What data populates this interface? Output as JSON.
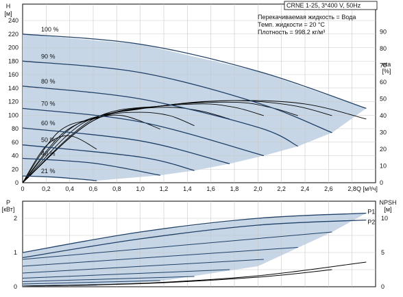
{
  "header": {
    "title": "CRNE 1-25, 3*400 V, 50Hz",
    "info_lines": [
      "Перекачиваемая жидкость = Вода",
      "Темп. жидкости = 20 °C",
      "Плотность = 998.2 кг/м³"
    ]
  },
  "colors": {
    "envelope_fill": "#c6d6e6",
    "curve": "#1f3f66",
    "efficiency_curve": "#000000",
    "grid": "#c8c8c8",
    "axis": "#000000"
  },
  "chart_data": [
    {
      "type": "line",
      "name": "head",
      "xlabel": "Q [м³/ч]",
      "ylabel_left": [
        "H",
        "[м]"
      ],
      "ylabel_right": [
        "eta",
        "[%]"
      ],
      "xlim": [
        0,
        3.0
      ],
      "ylim": [
        0,
        240
      ],
      "ylim_right": [
        0,
        100
      ],
      "x_ticks": [
        0,
        0.2,
        0.4,
        0.6,
        0.8,
        1.0,
        1.2,
        1.4,
        1.6,
        1.8,
        2.0,
        2.2,
        2.4,
        2.6,
        2.8
      ],
      "x_tick_labels": [
        "0",
        "0,2",
        "0,4",
        "0,6",
        "0,8",
        "1,0",
        "1,2",
        "1,4",
        "1,6",
        "1,8",
        "2,0",
        "2,2",
        "2,4",
        "2,6",
        "2,8"
      ],
      "y_ticks": [
        0,
        20,
        40,
        60,
        80,
        100,
        120,
        140,
        160,
        180,
        200,
        220,
        240
      ],
      "y_tick_labels": [
        "0",
        "20",
        "40",
        "60",
        "80",
        "100",
        "120",
        "140",
        "160",
        "180",
        "200",
        "220",
        "240"
      ],
      "y_ticks_right": [
        0,
        10,
        20,
        30,
        40,
        50,
        60,
        70,
        80,
        90
      ],
      "y_tick_labels_right": [
        "0",
        "10",
        "20",
        "30",
        "40",
        "50",
        "60",
        "70",
        "80",
        "90"
      ],
      "grid": true,
      "speed_labels": [
        "100 %",
        "90 %",
        "80 %",
        "70 %",
        "60 %",
        "50 %",
        "40 %",
        "21 %"
      ],
      "series": [
        {
          "name": "100 %",
          "x": [
            0,
            1.0,
            2.0,
            2.92
          ],
          "y": [
            220,
            205,
            165,
            110
          ]
        },
        {
          "name": "90 %",
          "x": [
            0,
            1.0,
            2.0,
            2.63
          ],
          "y": [
            180,
            163,
            118,
            74
          ]
        },
        {
          "name": "80 %",
          "x": [
            0,
            1.0,
            2.0,
            2.34
          ],
          "y": [
            143,
            124,
            82,
            54
          ]
        },
        {
          "name": "70 %",
          "x": [
            0,
            1.0,
            2.05
          ],
          "y": [
            110,
            90,
            40
          ]
        },
        {
          "name": "60 %",
          "x": [
            0,
            1.0,
            1.76
          ],
          "y": [
            81,
            62,
            28
          ]
        },
        {
          "name": "50 %",
          "x": [
            0,
            1.0,
            1.46
          ],
          "y": [
            56,
            38,
            18
          ]
        },
        {
          "name": "40 %",
          "x": [
            0,
            0.6,
            1.17
          ],
          "y": [
            36,
            29,
            11
          ]
        },
        {
          "name": "21 %",
          "x": [
            0,
            0.3,
            0.63
          ],
          "y": [
            10,
            8,
            3
          ]
        }
      ],
      "efficiency_series": [
        {
          "x": [
            0,
            0.6,
            1.2,
            1.8,
            2.4,
            2.92
          ],
          "y": [
            0,
            38,
            46,
            49,
            47,
            38
          ]
        },
        {
          "x": [
            0,
            0.6,
            1.2,
            1.8,
            2.3,
            2.63
          ],
          "y": [
            0,
            37,
            46,
            49,
            46,
            40
          ]
        },
        {
          "x": [
            0,
            0.6,
            1.2,
            1.8,
            2.1,
            2.34
          ],
          "y": [
            0,
            37,
            46,
            48,
            45,
            40
          ]
        },
        {
          "x": [
            0,
            0.5,
            1.0,
            1.5,
            1.8,
            2.05
          ],
          "y": [
            0,
            35,
            44,
            47,
            45,
            40
          ]
        },
        {
          "x": [
            0,
            0.4,
            0.8,
            1.2,
            1.5,
            1.76
          ],
          "y": [
            0,
            32,
            42,
            45,
            43,
            38
          ]
        },
        {
          "x": [
            0,
            0.35,
            0.7,
            1.0,
            1.25,
            1.46
          ],
          "y": [
            0,
            30,
            40,
            42,
            40,
            34
          ]
        },
        {
          "x": [
            0,
            0.3,
            0.6,
            0.85,
            1.17
          ],
          "y": [
            0,
            30,
            38,
            40,
            32
          ]
        },
        {
          "x": [
            0,
            0.2,
            0.4,
            0.63
          ],
          "y": [
            0,
            22,
            28,
            20
          ]
        }
      ]
    },
    {
      "type": "line",
      "name": "power",
      "ylabel_left": [
        "P",
        "[кВт]"
      ],
      "ylabel_right": [
        "NPSH",
        "[м]"
      ],
      "xlim": [
        0,
        3.0
      ],
      "ylim": [
        0,
        2.5
      ],
      "ylim_right": [
        0,
        12.5
      ],
      "y_ticks": [
        0,
        1,
        2
      ],
      "y_tick_labels": [
        "0",
        "1",
        "2"
      ],
      "y_ticks_right": [
        0,
        5,
        10
      ],
      "y_tick_labels_right": [
        "0",
        "5",
        "10"
      ],
      "grid": true,
      "series_labels": [
        "P1",
        "P2"
      ],
      "series": [
        {
          "name": "P1",
          "x": [
            0,
            1.0,
            2.0,
            2.92
          ],
          "y": [
            1.0,
            1.6,
            2.0,
            2.15
          ]
        },
        {
          "name": "P2",
          "x": [
            0,
            1.0,
            2.0,
            2.92
          ],
          "y": [
            0.85,
            1.4,
            1.8,
            1.95
          ]
        }
      ],
      "speed_power_series": [
        {
          "x": [
            0,
            2.63
          ],
          "y": [
            0.8,
            1.6
          ]
        },
        {
          "x": [
            0,
            2.34
          ],
          "y": [
            0.6,
            1.15
          ]
        },
        {
          "x": [
            0,
            2.05
          ],
          "y": [
            0.4,
            0.8
          ]
        },
        {
          "x": [
            0,
            1.76
          ],
          "y": [
            0.25,
            0.5
          ]
        },
        {
          "x": [
            0,
            1.46
          ],
          "y": [
            0.15,
            0.3
          ]
        },
        {
          "x": [
            0,
            1.17
          ],
          "y": [
            0.08,
            0.18
          ]
        },
        {
          "x": [
            0,
            0.63
          ],
          "y": [
            0.02,
            0.05
          ]
        }
      ],
      "npsh_series": [
        {
          "x": [
            0,
            1.0,
            2.0,
            2.92
          ],
          "y": [
            0.1,
            0.5,
            1.6,
            3.6
          ]
        },
        {
          "x": [
            0,
            1.0,
            2.0,
            2.63
          ],
          "y": [
            0.1,
            0.45,
            1.4,
            2.5
          ]
        }
      ]
    }
  ]
}
